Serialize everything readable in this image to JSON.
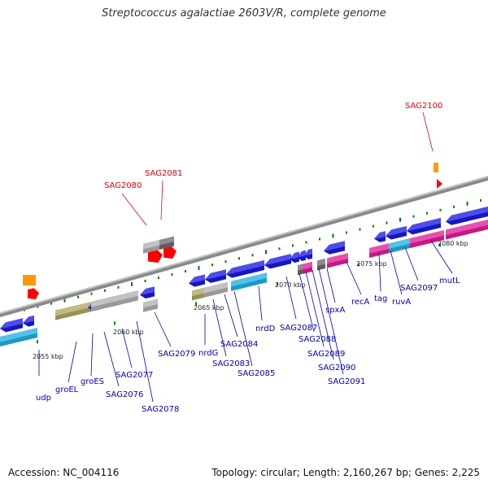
{
  "title": "Streptococcus agalactiae 2603V/R, complete genome",
  "accession": "Accession: NC_004116",
  "topology_summary": "Topology: circular; Length: 2,160,267 bp; Genes: 2,225",
  "colors": {
    "blue_gene": "#1a1ae6",
    "cyan_gene": "#22b4e6",
    "gray_gene": "#b4b4b4",
    "dark_gray_gene": "#6e6e6e",
    "olive_gene": "#b4aa60",
    "magenta_gene": "#e61e9a",
    "red_feature": "#ff0000",
    "orange_feature": "#ff9900",
    "label_blue": "#0000b4",
    "label_red": "#e60000",
    "dash_green": "#008000",
    "backbone": "#808080"
  },
  "scale_labels": [
    "2055 kbp",
    "2060 kbp",
    "2065 kbp",
    "2070 kbp",
    "2075 kbp",
    "2080 kbp"
  ],
  "gene_labels": [
    {
      "text": "udp",
      "color": "blue"
    },
    {
      "text": "groEL",
      "color": "blue"
    },
    {
      "text": "groES",
      "color": "blue"
    },
    {
      "text": "SAG2076",
      "color": "blue"
    },
    {
      "text": "SAG2077",
      "color": "blue"
    },
    {
      "text": "SAG2078",
      "color": "blue"
    },
    {
      "text": "SAG2079",
      "color": "blue"
    },
    {
      "text": "nrdG",
      "color": "blue"
    },
    {
      "text": "SAG2083",
      "color": "blue"
    },
    {
      "text": "SAG2084",
      "color": "blue"
    },
    {
      "text": "SAG2085",
      "color": "blue"
    },
    {
      "text": "nrdD",
      "color": "blue"
    },
    {
      "text": "SAG2087",
      "color": "blue"
    },
    {
      "text": "SAG2088",
      "color": "blue"
    },
    {
      "text": "SAG2089",
      "color": "blue"
    },
    {
      "text": "SAG2090",
      "color": "blue"
    },
    {
      "text": "SAG2091",
      "color": "blue"
    },
    {
      "text": "spxA",
      "color": "blue"
    },
    {
      "text": "recA",
      "color": "blue"
    },
    {
      "text": "tag",
      "color": "blue"
    },
    {
      "text": "ruvA",
      "color": "blue"
    },
    {
      "text": "SAG2097",
      "color": "blue"
    },
    {
      "text": "mutL",
      "color": "blue"
    },
    {
      "text": "SAG2080",
      "color": "red"
    },
    {
      "text": "SAG2081",
      "color": "red"
    },
    {
      "text": "SAG2100",
      "color": "red"
    }
  ]
}
